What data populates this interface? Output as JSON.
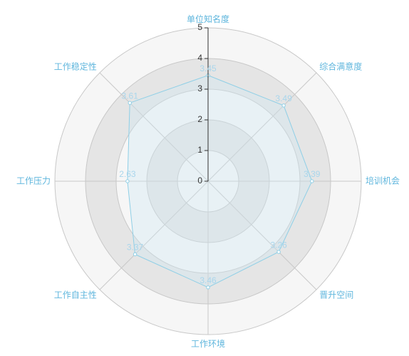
{
  "chart_data": {
    "type": "radar",
    "categories": [
      "单位知名度",
      "综合满意度",
      "培训机会",
      "晋升空间",
      "工作环境",
      "工作自主性",
      "工作压力",
      "工作稳定性"
    ],
    "series": [
      {
        "values": [
          3.45,
          3.49,
          3.39,
          3.26,
          3.46,
          3.37,
          2.63,
          3.61
        ]
      }
    ],
    "value_labels": [
      "3.45",
      "3.49",
      "3.39",
      "3.26",
      "3.46",
      "3.37",
      "2.63",
      "3.61"
    ],
    "rlim": [
      0,
      5
    ],
    "ticks": [
      "0",
      "1",
      "2",
      "3",
      "4",
      "5"
    ],
    "grid": true,
    "colors": {
      "series_line": "#8fcfe6",
      "series_fill": "#cfe7f3",
      "category_label": "#5fb6dd",
      "data_label": "#a9d6ec",
      "ring_dark": "#e5e5e5",
      "ring_light": "#f6f6f6",
      "grid_line": "#c8c8c8",
      "tick_text": "#333333"
    }
  }
}
